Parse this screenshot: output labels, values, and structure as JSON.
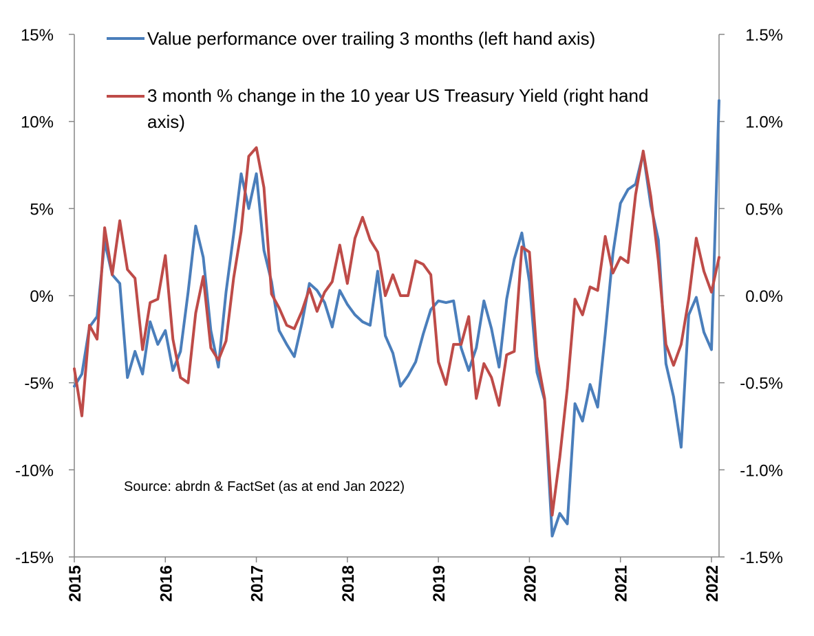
{
  "chart_data": {
    "type": "line",
    "title": "",
    "x_start": "2015-01",
    "x_frequency": "monthly",
    "x_ticks": [
      "2015",
      "2016",
      "2017",
      "2018",
      "2019",
      "2020",
      "2021",
      "2022"
    ],
    "y_left": {
      "range": [
        -15,
        15
      ],
      "ticks": [
        "15%",
        "10%",
        "5%",
        "0%",
        "-5%",
        "-10%",
        "-15%"
      ],
      "values": [
        15,
        10,
        5,
        0,
        -5,
        -10,
        -15
      ]
    },
    "y_right": {
      "range": [
        -1.5,
        1.5
      ],
      "ticks": [
        "1.5%",
        "1.0%",
        "0.5%",
        "0.0%",
        "-0.5%",
        "-1.0%",
        "-1.5%"
      ],
      "values": [
        1.5,
        1.0,
        0.5,
        0.0,
        -0.5,
        -1.0,
        -1.5
      ]
    },
    "grid": false,
    "legend_position": "top",
    "annotation": "Source: abrdn & FactSet (as at end Jan 2022)",
    "series": [
      {
        "name_lines": [
          "Value performance over trailing 3 months (left hand axis)"
        ],
        "axis": "left",
        "color": "#4a7ebb",
        "values": [
          -5.2,
          -4.5,
          -1.8,
          -1.2,
          3.1,
          1.2,
          0.7,
          -4.7,
          -3.2,
          -4.5,
          -1.5,
          -2.8,
          -2.0,
          -4.3,
          -3.2,
          0.2,
          4.0,
          2.2,
          -2.0,
          -4.1,
          0.2,
          3.5,
          7.0,
          5.0,
          7.0,
          2.6,
          0.8,
          -2.0,
          -2.8,
          -3.5,
          -1.6,
          0.7,
          0.3,
          -0.4,
          -1.8,
          0.3,
          -0.5,
          -1.1,
          -1.5,
          -1.7,
          1.4,
          -2.3,
          -3.3,
          -5.2,
          -4.6,
          -3.8,
          -2.2,
          -0.8,
          -0.3,
          -0.4,
          -0.3,
          -3.0,
          -4.3,
          -3.0,
          -0.3,
          -1.9,
          -4.1,
          -0.2,
          2.1,
          3.6,
          0.8,
          -4.4,
          -6.0,
          -13.8,
          -12.5,
          -13.1,
          -6.2,
          -7.2,
          -5.1,
          -6.4,
          -2.2,
          2.4,
          5.3,
          6.1,
          6.4,
          8.2,
          5.2,
          3.2,
          -3.9,
          -5.8,
          -8.7,
          -1.1,
          -0.1,
          -2.1,
          -3.1,
          11.2
        ]
      },
      {
        "name_lines": [
          "3 month % change in the 10 year US Treasury Yield (right hand",
          "axis)"
        ],
        "axis": "right",
        "color": "#be4b48",
        "values": [
          -0.42,
          -0.69,
          -0.17,
          -0.25,
          0.39,
          0.12,
          0.43,
          0.15,
          0.1,
          -0.31,
          -0.04,
          -0.02,
          0.23,
          -0.25,
          -0.47,
          -0.5,
          -0.1,
          0.11,
          -0.3,
          -0.37,
          -0.26,
          0.1,
          0.37,
          0.8,
          0.85,
          0.62,
          0.01,
          -0.07,
          -0.17,
          -0.19,
          -0.09,
          0.04,
          -0.09,
          0.02,
          0.08,
          0.29,
          0.07,
          0.33,
          0.45,
          0.32,
          0.25,
          0.0,
          0.12,
          0.0,
          0.0,
          0.2,
          0.18,
          0.12,
          -0.38,
          -0.51,
          -0.28,
          -0.28,
          -0.12,
          -0.59,
          -0.39,
          -0.47,
          -0.63,
          -0.34,
          -0.32,
          0.28,
          0.25,
          -0.35,
          -0.59,
          -1.26,
          -0.93,
          -0.53,
          -0.02,
          -0.11,
          0.05,
          0.03,
          0.34,
          0.13,
          0.22,
          0.19,
          0.58,
          0.83,
          0.57,
          0.2,
          -0.28,
          -0.4,
          -0.28,
          -0.02,
          0.33,
          0.14,
          0.02,
          0.22
        ]
      }
    ]
  }
}
